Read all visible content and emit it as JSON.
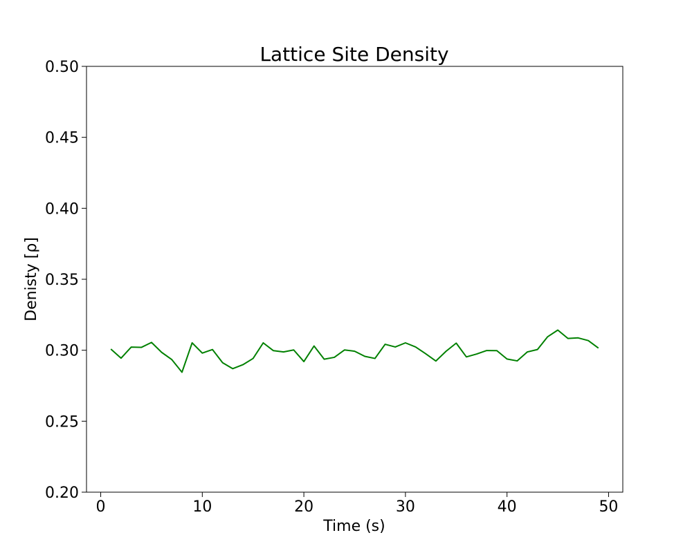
{
  "chart_data": {
    "type": "line",
    "title": "Lattice Site Density",
    "xlabel": "Time (s)",
    "ylabel": "Denisty [ρ]",
    "xlim": [
      -1.4,
      51.4
    ],
    "ylim": [
      0.2,
      0.5
    ],
    "xticks": [
      "0",
      "10",
      "20",
      "30",
      "40",
      "50"
    ],
    "yticks": [
      "0.20",
      "0.25",
      "0.30",
      "0.35",
      "0.40",
      "0.45",
      "0.50"
    ],
    "grid": false,
    "series": [
      {
        "color": "#008000",
        "x": [
          1,
          2,
          3,
          4,
          5,
          6,
          7,
          8,
          9,
          10,
          11,
          12,
          13,
          14,
          15,
          16,
          17,
          18,
          19,
          20,
          21,
          22,
          23,
          24,
          25,
          26,
          27,
          28,
          29,
          30,
          31,
          32,
          33,
          34,
          35,
          36,
          37,
          38,
          39,
          40,
          41,
          42,
          43,
          44,
          45,
          46,
          47,
          48,
          49
        ],
        "y": [
          0.3008,
          0.2944,
          0.3022,
          0.302,
          0.3055,
          0.2985,
          0.2934,
          0.2845,
          0.3052,
          0.298,
          0.3005,
          0.2912,
          0.287,
          0.2898,
          0.2942,
          0.3052,
          0.2997,
          0.2988,
          0.3002,
          0.292,
          0.303,
          0.2937,
          0.295,
          0.3002,
          0.2993,
          0.2957,
          0.2942,
          0.3042,
          0.3023,
          0.3052,
          0.3023,
          0.2975,
          0.2924,
          0.2993,
          0.305,
          0.2953,
          0.2973,
          0.2998,
          0.2997,
          0.2938,
          0.2925,
          0.2988,
          0.3005,
          0.3095,
          0.3142,
          0.3083,
          0.3087,
          0.3068,
          0.3015
        ]
      }
    ]
  }
}
